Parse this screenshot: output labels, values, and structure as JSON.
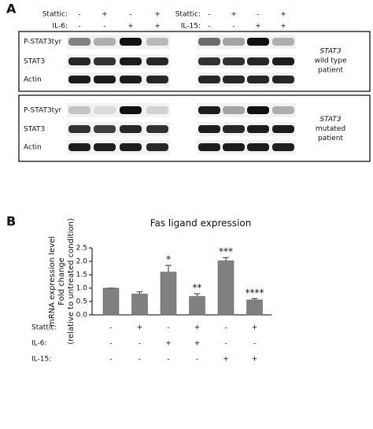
{
  "panel_a": {
    "label": "A",
    "left_conditions": [
      {
        "name": "Stattic:",
        "signs": [
          "-",
          "+",
          "-",
          "+"
        ]
      },
      {
        "name": "IL-6:",
        "signs": [
          "-",
          "-",
          "+",
          "+"
        ]
      }
    ],
    "right_conditions": [
      {
        "name": "Stattic:",
        "signs": [
          "-",
          "+",
          "-",
          "+"
        ]
      },
      {
        "name": "IL-15:",
        "signs": [
          "-",
          "-",
          "+",
          "+"
        ]
      }
    ],
    "groups": [
      {
        "rows": [
          "P-STAT3tyr",
          "STAT3",
          "Actin"
        ],
        "gene": "STAT3",
        "description": [
          "wild type",
          "patient"
        ]
      },
      {
        "rows": [
          "P-STAT3tyr",
          "STAT3",
          "Actin"
        ],
        "gene": "STAT3",
        "description": [
          "mutated",
          "patient"
        ]
      }
    ]
  },
  "panel_b": {
    "label": "B"
  },
  "chart_data": {
    "type": "bar",
    "title": "Fas ligand expression",
    "y_label": [
      "mRNA expression level",
      "Fold change",
      "(relative to untreated condition)"
    ],
    "values": [
      1.0,
      0.78,
      1.6,
      0.69,
      2.02,
      0.56
    ],
    "errors": [
      0,
      0.08,
      0.25,
      0.1,
      0.12,
      0.05
    ],
    "significance": [
      null,
      null,
      "*",
      "**",
      "***",
      "****"
    ],
    "color": "#808080",
    "ylim": [
      0,
      2.5
    ],
    "yticks": [
      {
        "value": 0,
        "label": "0.0"
      },
      {
        "value": 0.5,
        "label": "0.5"
      },
      {
        "value": 1,
        "label": "1.0"
      },
      {
        "value": 1.5,
        "label": "1.5"
      },
      {
        "value": 2,
        "label": "2.0"
      },
      {
        "value": 2.5,
        "label": "2.5"
      }
    ],
    "treatments": [
      {
        "name": "Stattic:",
        "signs": [
          "-",
          "+",
          "-",
          "+",
          "-",
          "+"
        ]
      },
      {
        "name": "IL-6:",
        "signs": [
          "-",
          "-",
          "+",
          "+",
          "-",
          "-"
        ]
      },
      {
        "name": "IL-15:",
        "signs": [
          "-",
          "-",
          "-",
          "-",
          "+",
          "+"
        ]
      }
    ]
  }
}
